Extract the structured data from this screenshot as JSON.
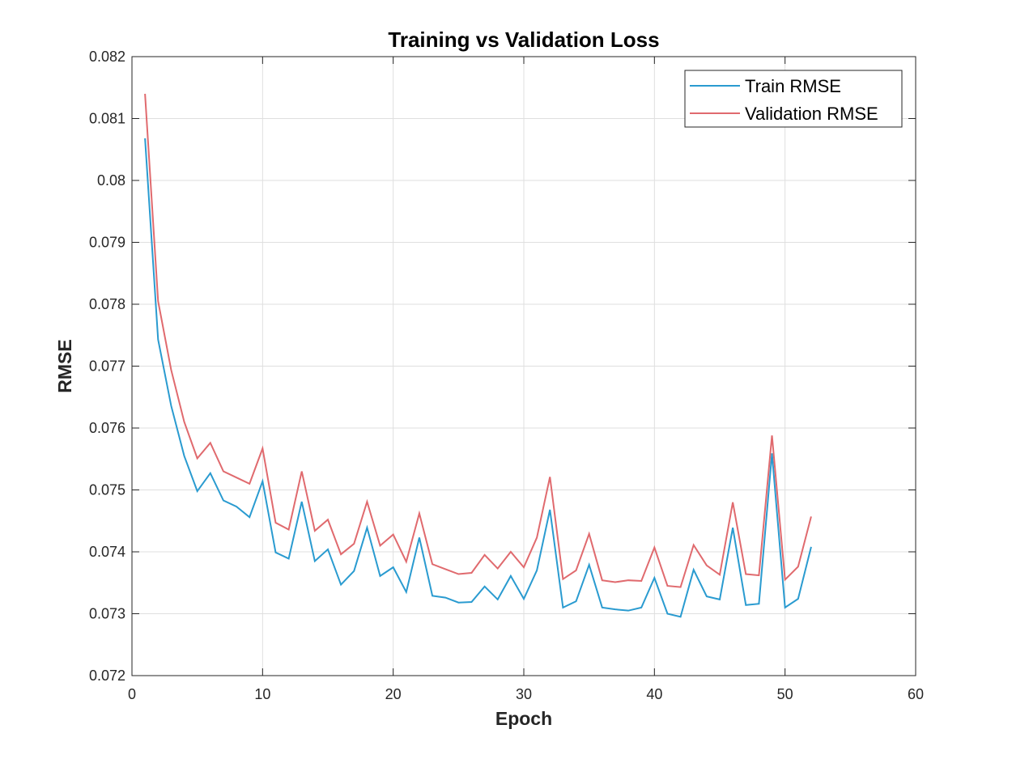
{
  "chart_data": {
    "type": "line",
    "title": "Training vs Validation Loss",
    "xlabel": "Epoch",
    "ylabel": "RMSE",
    "xlim": [
      0,
      60
    ],
    "ylim": [
      0.072,
      0.082
    ],
    "xticks": [
      0,
      10,
      20,
      30,
      40,
      50,
      60
    ],
    "xtick_labels": [
      "0",
      "10",
      "20",
      "30",
      "40",
      "50",
      "60"
    ],
    "yticks": [
      0.072,
      0.073,
      0.074,
      0.075,
      0.076,
      0.077,
      0.078,
      0.079,
      0.08,
      0.081,
      0.082
    ],
    "ytick_labels": [
      "0.072",
      "0.073",
      "0.074",
      "0.075",
      "0.076",
      "0.077",
      "0.078",
      "0.079",
      "0.08",
      "0.081",
      "0.082"
    ],
    "grid": true,
    "legend_position": "top-right",
    "x": [
      1,
      2,
      3,
      4,
      5,
      6,
      7,
      8,
      9,
      10,
      11,
      12,
      13,
      14,
      15,
      16,
      17,
      18,
      19,
      20,
      21,
      22,
      23,
      24,
      25,
      26,
      27,
      28,
      29,
      30,
      31,
      32,
      33,
      34,
      35,
      36,
      37,
      38,
      39,
      40,
      41,
      42,
      43,
      44,
      45,
      46,
      47,
      48,
      49,
      50,
      51,
      52
    ],
    "series": [
      {
        "name": "Train RMSE",
        "color": "#2a9bd0",
        "values": [
          0.08068,
          0.07743,
          0.07636,
          0.07555,
          0.07498,
          0.07527,
          0.07483,
          0.07473,
          0.07456,
          0.07514,
          0.07399,
          0.07389,
          0.07481,
          0.07385,
          0.07404,
          0.07347,
          0.07369,
          0.07439,
          0.07361,
          0.07375,
          0.07335,
          0.07423,
          0.07329,
          0.07326,
          0.07318,
          0.07319,
          0.07344,
          0.07323,
          0.07361,
          0.07324,
          0.0737,
          0.07468,
          0.0731,
          0.0732,
          0.07379,
          0.0731,
          0.07307,
          0.07305,
          0.0731,
          0.07358,
          0.073,
          0.07295,
          0.07371,
          0.07328,
          0.07323,
          0.07439,
          0.07314,
          0.07316,
          0.07559,
          0.0731,
          0.07324,
          0.07408
        ]
      },
      {
        "name": "Validation RMSE",
        "color": "#e06a6e",
        "values": [
          0.0814,
          0.07805,
          0.07694,
          0.0761,
          0.07551,
          0.07576,
          0.0753,
          0.0752,
          0.0751,
          0.07567,
          0.07447,
          0.07436,
          0.0753,
          0.07434,
          0.07452,
          0.07396,
          0.07413,
          0.07481,
          0.0741,
          0.07428,
          0.07384,
          0.07462,
          0.0738,
          0.07372,
          0.07364,
          0.07366,
          0.07395,
          0.07373,
          0.074,
          0.07375,
          0.07423,
          0.07521,
          0.07356,
          0.0737,
          0.07429,
          0.07354,
          0.07351,
          0.07354,
          0.07353,
          0.07407,
          0.07345,
          0.07343,
          0.07411,
          0.07378,
          0.07363,
          0.0748,
          0.07364,
          0.07362,
          0.07588,
          0.07355,
          0.07376,
          0.07457
        ]
      }
    ]
  }
}
